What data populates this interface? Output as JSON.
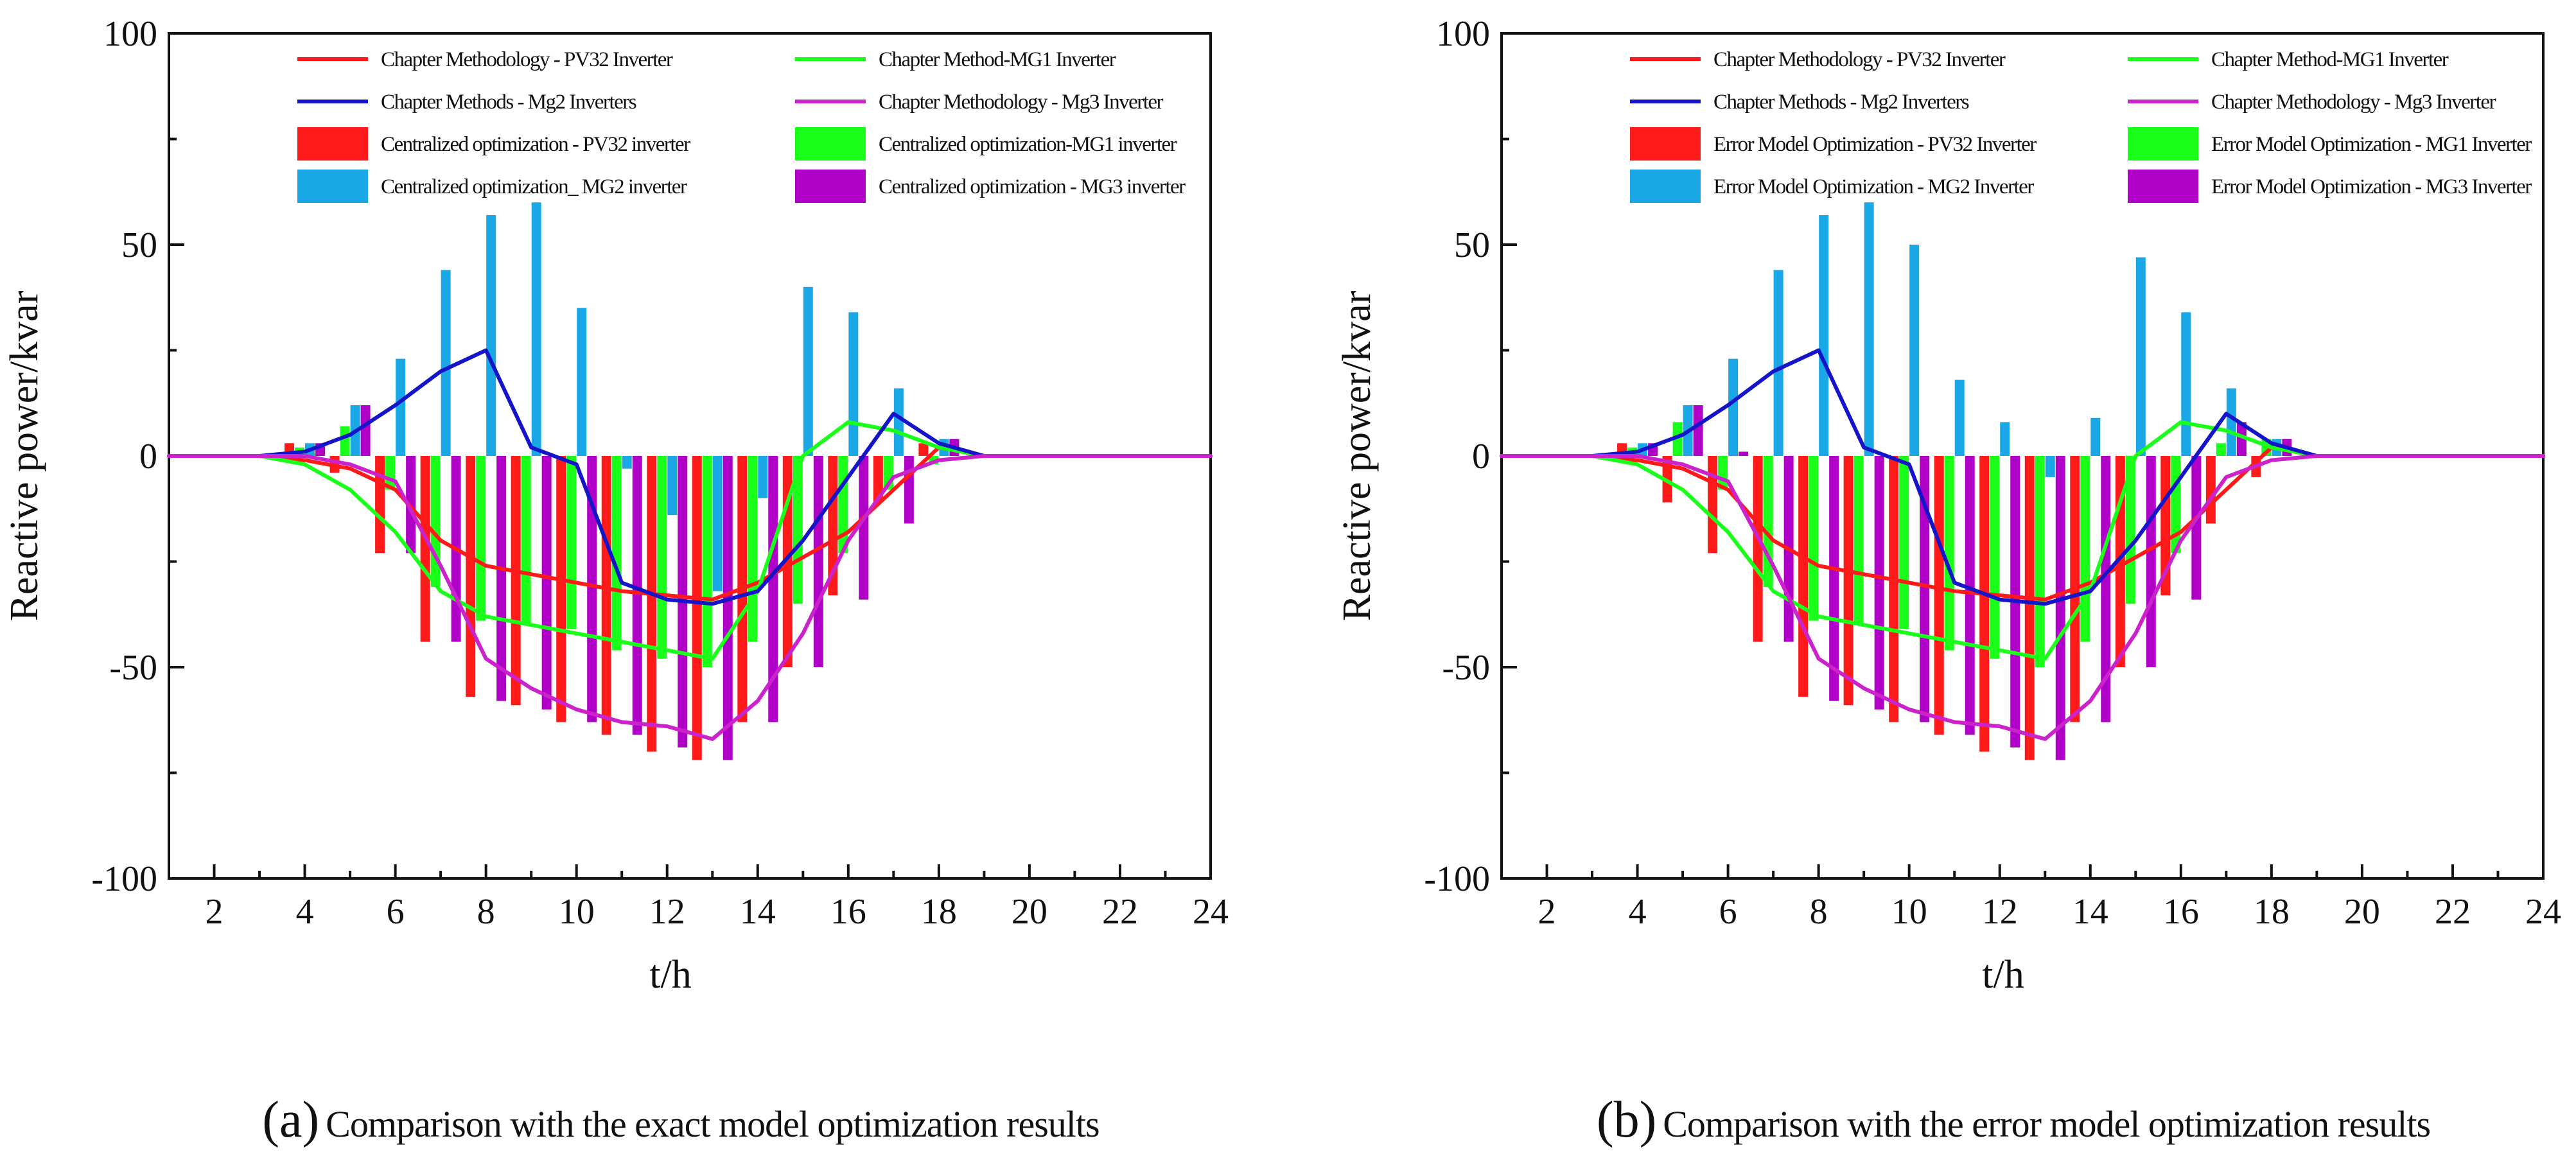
{
  "colors": {
    "pv32": "#ff1a1a",
    "mg1": "#1aff1a",
    "mg2": "#1414c8",
    "mg3": "#cc22cc",
    "mg2_bar": "#1aa7e6",
    "mg3_bar": "#b000c8",
    "axis": "#111111"
  },
  "chart_data": [
    {
      "type": "bar",
      "panel_id": "a",
      "caption_letter": "(a)",
      "caption": "Comparison with the exact model optimization results",
      "xlabel": "t/h",
      "ylabel": "Reactive power/kvar",
      "xlim": [
        1,
        24
      ],
      "ylim": [
        -100,
        100
      ],
      "xticks": [
        2,
        4,
        6,
        8,
        10,
        12,
        14,
        16,
        18,
        20,
        22,
        24
      ],
      "yticks": [
        100,
        50,
        0,
        -50,
        -100
      ],
      "grid": false,
      "legend_position": "top-center",
      "lines": [
        {
          "name": "Chapter Methodology - PV32 Inverter",
          "color_key": "pv32",
          "x": [
            1,
            2,
            3,
            4,
            5,
            6,
            7,
            8,
            9,
            10,
            11,
            12,
            13,
            14,
            15,
            16,
            17,
            18,
            19,
            20,
            21,
            22,
            23,
            24
          ],
          "y": [
            0,
            0,
            0,
            -1,
            -3,
            -8,
            -20,
            -26,
            -28,
            -30,
            -32,
            -33,
            -34,
            -30,
            -24,
            -18,
            -8,
            2,
            0,
            0,
            0,
            0,
            0,
            0
          ]
        },
        {
          "name": "Chapter Method-MG1 Inverter",
          "color_key": "mg1",
          "x": [
            1,
            2,
            3,
            4,
            5,
            6,
            7,
            8,
            9,
            10,
            11,
            12,
            13,
            14,
            15,
            16,
            17,
            18,
            19,
            20,
            21,
            22,
            23,
            24
          ],
          "y": [
            0,
            0,
            0,
            -2,
            -8,
            -18,
            -32,
            -38,
            -40,
            -42,
            -44,
            -46,
            -48,
            -32,
            0,
            8,
            6,
            2,
            0,
            0,
            0,
            0,
            0,
            0
          ]
        },
        {
          "name": "Chapter Methods - Mg2 Inverters",
          "color_key": "mg2",
          "x": [
            1,
            2,
            3,
            4,
            5,
            6,
            7,
            8,
            9,
            10,
            11,
            12,
            13,
            14,
            15,
            16,
            17,
            18,
            19,
            20,
            21,
            22,
            23,
            24
          ],
          "y": [
            0,
            0,
            0,
            1,
            5,
            12,
            20,
            25,
            2,
            -2,
            -30,
            -34,
            -35,
            -32,
            -20,
            -5,
            10,
            3,
            0,
            0,
            0,
            0,
            0,
            0
          ]
        },
        {
          "name": "Chapter Methodology - Mg3 Inverter",
          "color_key": "mg3",
          "x": [
            1,
            2,
            3,
            4,
            5,
            6,
            7,
            8,
            9,
            10,
            11,
            12,
            13,
            14,
            15,
            16,
            17,
            18,
            19,
            20,
            21,
            22,
            23,
            24
          ],
          "y": [
            0,
            0,
            0,
            0,
            -2,
            -6,
            -26,
            -48,
            -55,
            -60,
            -63,
            -64,
            -67,
            -58,
            -42,
            -20,
            -5,
            -1,
            0,
            0,
            0,
            0,
            0,
            0
          ]
        }
      ],
      "bar_series": [
        {
          "name": "Centralized optimization - PV32 inverter",
          "color_key": "pv32",
          "x": [
            4,
            5,
            6,
            7,
            8,
            9,
            10,
            11,
            12,
            13,
            14,
            15,
            16,
            17,
            18
          ],
          "values": [
            3,
            -4,
            -23,
            -44,
            -57,
            -59,
            -63,
            -66,
            -70,
            -72,
            -63,
            -50,
            -33,
            -11,
            3
          ]
        },
        {
          "name": "Centralized optimization-MG1 inverter",
          "color_key": "mg1",
          "x": [
            4,
            5,
            6,
            7,
            8,
            9,
            10,
            11,
            12,
            13,
            14,
            15,
            16,
            17,
            18
          ],
          "values": [
            2,
            7,
            -8,
            -31,
            -39,
            -40,
            -41,
            -46,
            -48,
            -50,
            -44,
            -35,
            -23,
            -8,
            -2
          ]
        },
        {
          "name": "Centralized optimization_ MG2 inverter",
          "color_key": "mg2_bar",
          "x": [
            4,
            5,
            6,
            7,
            8,
            9,
            10,
            11,
            12,
            13,
            14,
            15,
            16,
            17,
            18
          ],
          "values": [
            3,
            12,
            23,
            44,
            57,
            60,
            35,
            -3,
            -14,
            -32,
            -10,
            40,
            34,
            16,
            4
          ]
        },
        {
          "name": "Centralized optimization - MG3 inverter",
          "color_key": "mg3_bar",
          "x": [
            4,
            5,
            6,
            7,
            8,
            9,
            10,
            11,
            12,
            13,
            14,
            15,
            16,
            17,
            18
          ],
          "values": [
            3,
            12,
            -23,
            -44,
            -58,
            -60,
            -63,
            -66,
            -69,
            -72,
            -63,
            -50,
            -34,
            -16,
            4
          ]
        }
      ]
    },
    {
      "type": "bar",
      "panel_id": "b",
      "caption_letter": "(b)",
      "caption": "Comparison with the error model optimization results",
      "xlabel": "t/h",
      "ylabel": "Reactive power/kvar",
      "xlim": [
        1,
        24
      ],
      "ylim": [
        -100,
        100
      ],
      "xticks": [
        2,
        4,
        6,
        8,
        10,
        12,
        14,
        16,
        18,
        20,
        22,
        24
      ],
      "yticks": [
        100,
        50,
        0,
        -50,
        -100
      ],
      "grid": false,
      "legend_position": "top-center",
      "lines": [
        {
          "name": "Chapter Methodology - PV32 Inverter",
          "color_key": "pv32",
          "x": [
            1,
            2,
            3,
            4,
            5,
            6,
            7,
            8,
            9,
            10,
            11,
            12,
            13,
            14,
            15,
            16,
            17,
            18,
            19,
            20,
            21,
            22,
            23,
            24
          ],
          "y": [
            0,
            0,
            0,
            -1,
            -3,
            -8,
            -20,
            -26,
            -28,
            -30,
            -32,
            -33,
            -34,
            -30,
            -24,
            -18,
            -8,
            2,
            0,
            0,
            0,
            0,
            0,
            0
          ]
        },
        {
          "name": "Chapter Method-MG1 Inverter",
          "color_key": "mg1",
          "x": [
            1,
            2,
            3,
            4,
            5,
            6,
            7,
            8,
            9,
            10,
            11,
            12,
            13,
            14,
            15,
            16,
            17,
            18,
            19,
            20,
            21,
            22,
            23,
            24
          ],
          "y": [
            0,
            0,
            0,
            -2,
            -8,
            -18,
            -32,
            -38,
            -40,
            -42,
            -44,
            -46,
            -48,
            -32,
            0,
            8,
            6,
            2,
            0,
            0,
            0,
            0,
            0,
            0
          ]
        },
        {
          "name": "Chapter Methods - Mg2 Inverters",
          "color_key": "mg2",
          "x": [
            1,
            2,
            3,
            4,
            5,
            6,
            7,
            8,
            9,
            10,
            11,
            12,
            13,
            14,
            15,
            16,
            17,
            18,
            19,
            20,
            21,
            22,
            23,
            24
          ],
          "y": [
            0,
            0,
            0,
            1,
            5,
            12,
            20,
            25,
            2,
            -2,
            -30,
            -34,
            -35,
            -32,
            -20,
            -5,
            10,
            3,
            0,
            0,
            0,
            0,
            0,
            0
          ]
        },
        {
          "name": "Chapter Methodology - Mg3 Inverter",
          "color_key": "mg3",
          "x": [
            1,
            2,
            3,
            4,
            5,
            6,
            7,
            8,
            9,
            10,
            11,
            12,
            13,
            14,
            15,
            16,
            17,
            18,
            19,
            20,
            21,
            22,
            23,
            24
          ],
          "y": [
            0,
            0,
            0,
            0,
            -2,
            -6,
            -26,
            -48,
            -55,
            -60,
            -63,
            -64,
            -67,
            -58,
            -42,
            -20,
            -5,
            -1,
            0,
            0,
            0,
            0,
            0,
            0
          ]
        }
      ],
      "bar_series": [
        {
          "name": "Error Model Optimization - PV32 Inverter",
          "color_key": "pv32",
          "x": [
            4,
            5,
            6,
            7,
            8,
            9,
            10,
            11,
            12,
            13,
            14,
            15,
            16,
            17,
            18
          ],
          "values": [
            3,
            -11,
            -23,
            -44,
            -57,
            -59,
            -63,
            -66,
            -70,
            -72,
            -63,
            -50,
            -33,
            -16,
            -5
          ]
        },
        {
          "name": "Error Model Optimization - MG1 Inverter",
          "color_key": "mg1",
          "x": [
            4,
            5,
            6,
            7,
            8,
            9,
            10,
            11,
            12,
            13,
            14,
            15,
            16,
            17,
            18
          ],
          "values": [
            2,
            8,
            -8,
            -31,
            -39,
            -40,
            -41,
            -46,
            -48,
            -50,
            -44,
            -35,
            -23,
            3,
            4
          ]
        },
        {
          "name": "Error Model Optimization - MG2 Inverter",
          "color_key": "mg2_bar",
          "x": [
            4,
            5,
            6,
            7,
            8,
            9,
            10,
            11,
            12,
            13,
            14,
            15,
            16,
            17,
            18
          ],
          "values": [
            3,
            12,
            23,
            44,
            57,
            60,
            50,
            18,
            8,
            -5,
            9,
            47,
            34,
            16,
            4
          ]
        },
        {
          "name": "Error Model Optimization - MG3 Inverter",
          "color_key": "mg3_bar",
          "x": [
            4,
            5,
            6,
            7,
            8,
            9,
            10,
            11,
            12,
            13,
            14,
            15,
            16,
            17,
            18
          ],
          "values": [
            3,
            12,
            1,
            -44,
            -58,
            -60,
            -63,
            -66,
            -69,
            -72,
            -63,
            -50,
            -34,
            8,
            4
          ]
        }
      ]
    }
  ]
}
